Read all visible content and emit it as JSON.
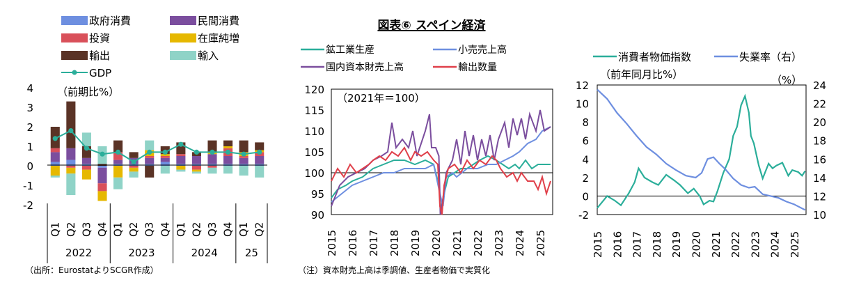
{
  "title": "図表⑥ スペイン経済",
  "source_note": "（出所：EurostatよりSCGR作成）",
  "footnote": "（注）資本財売上高は季調値、生産者物価で実質化",
  "colors": {
    "gov": "#6E8FE0",
    "priv": "#7B4E9E",
    "inv": "#D9505A",
    "inventory": "#E6B800",
    "exports": "#5A3326",
    "imports": "#8FD3C7",
    "gdp": "#2BAE9A",
    "industrial": "#2BAE9A",
    "retail": "#6E8FE0",
    "capital": "#7B4E9E",
    "exportvol": "#E0404A",
    "cpi": "#2BAE9A",
    "unemp": "#6E8FE0"
  },
  "chart_data": [
    {
      "type": "bar",
      "title": "",
      "ylabel_note": "（前期比%）",
      "ylim": [
        -2,
        4
      ],
      "yticks": [
        "4",
        "3",
        "2",
        "1",
        "0",
        "-1",
        "-2"
      ],
      "categories": [
        "Q1",
        "Q2",
        "Q3",
        "Q4",
        "Q1",
        "Q2",
        "Q3",
        "Q4",
        "Q1",
        "Q2",
        "Q3",
        "Q4",
        "Q1",
        "Q2"
      ],
      "year_labels": [
        "2022",
        "2023",
        "2024",
        "25"
      ],
      "series": [
        {
          "name": "政府消費",
          "values": [
            0.2,
            0.3,
            0.1,
            -0.1,
            0.1,
            0.1,
            0.1,
            0.2,
            0.1,
            0.1,
            0.1,
            0.1,
            0.1,
            0.1
          ]
        },
        {
          "name": "民間消費",
          "values": [
            0.5,
            0.6,
            0.3,
            -0.8,
            0.2,
            0.3,
            0.3,
            0.2,
            0.4,
            0.4,
            0.5,
            0.4,
            0.3,
            0.4
          ]
        },
        {
          "name": "投資",
          "values": [
            0.2,
            -0.1,
            -0.2,
            -0.4,
            0.4,
            -0.1,
            0.1,
            0.1,
            0.1,
            -0.2,
            -0.1,
            0.4,
            0.1,
            0.2
          ]
        },
        {
          "name": "在庫純増",
          "values": [
            -0.5,
            -0.3,
            -0.5,
            -0.5,
            -0.6,
            -0.2,
            0.3,
            0.1,
            -0.2,
            -0.1,
            0.1,
            0.1,
            0.2,
            0.1
          ]
        },
        {
          "name": "輸出",
          "values": [
            1.1,
            2.4,
            0.6,
            0.1,
            0.6,
            0.3,
            -0.6,
            0.4,
            0.6,
            0.2,
            0.6,
            0.3,
            0.6,
            0.4
          ]
        },
        {
          "name": "輸入",
          "values": [
            -0.1,
            -1.1,
            0.7,
            0.9,
            -0.6,
            -0.3,
            0.5,
            -0.4,
            -0.1,
            -0.1,
            -0.3,
            -0.4,
            -0.5,
            -0.6
          ]
        }
      ],
      "line": {
        "name": "GDP",
        "values": [
          1.4,
          1.8,
          0.9,
          0.6,
          0.7,
          0.2,
          0.7,
          0.7,
          1.1,
          0.7,
          0.7,
          0.7,
          0.6,
          0.7
        ]
      }
    },
    {
      "type": "line",
      "title": "",
      "unit_note": "（2021年＝100）",
      "ylim": [
        90,
        120
      ],
      "yticks": [
        "120",
        "115",
        "110",
        "105",
        "100",
        "95",
        "90"
      ],
      "xlim": [
        2015,
        2025.6
      ],
      "xticks": [
        "2015",
        "2016",
        "2017",
        "2018",
        "2019",
        "2020",
        "2021",
        "2022",
        "2023",
        "2024",
        "2025"
      ],
      "baseline": 100,
      "series": [
        {
          "name": "鉱工業生産",
          "values": [
            [
              2015.0,
              94
            ],
            [
              2015.3,
              96
            ],
            [
              2015.7,
              97
            ],
            [
              2016.0,
              98
            ],
            [
              2016.5,
              99
            ],
            [
              2017.0,
              101
            ],
            [
              2017.5,
              102
            ],
            [
              2018.0,
              103
            ],
            [
              2018.5,
              103
            ],
            [
              2019.0,
              102
            ],
            [
              2019.5,
              103
            ],
            [
              2019.9,
              102
            ],
            [
              2020.15,
              97
            ],
            [
              2020.25,
              91
            ],
            [
              2020.4,
              95
            ],
            [
              2020.6,
              99
            ],
            [
              2020.9,
              100
            ],
            [
              2021.2,
              101
            ],
            [
              2021.5,
              101
            ],
            [
              2021.8,
              102
            ],
            [
              2022.1,
              103
            ],
            [
              2022.5,
              104
            ],
            [
              2022.9,
              103
            ],
            [
              2023.2,
              102
            ],
            [
              2023.5,
              101
            ],
            [
              2023.8,
              102
            ],
            [
              2024.0,
              101
            ],
            [
              2024.3,
              103
            ],
            [
              2024.6,
              101
            ],
            [
              2024.9,
              102
            ],
            [
              2025.2,
              102
            ],
            [
              2025.5,
              102
            ]
          ]
        },
        {
          "name": "小売売上高",
          "values": [
            [
              2015.0,
              93
            ],
            [
              2015.5,
              95
            ],
            [
              2016.0,
              97
            ],
            [
              2016.5,
              98
            ],
            [
              2017.0,
              99
            ],
            [
              2017.5,
              100
            ],
            [
              2018.0,
              100
            ],
            [
              2018.5,
              101
            ],
            [
              2019.0,
              101
            ],
            [
              2019.5,
              101
            ],
            [
              2019.9,
              102
            ],
            [
              2020.2,
              95
            ],
            [
              2020.35,
              92
            ],
            [
              2020.5,
              99
            ],
            [
              2020.8,
              100
            ],
            [
              2021.0,
              99
            ],
            [
              2021.5,
              101
            ],
            [
              2022.0,
              101
            ],
            [
              2022.5,
              102
            ],
            [
              2022.9,
              102
            ],
            [
              2023.3,
              103
            ],
            [
              2023.7,
              104
            ],
            [
              2024.0,
              105
            ],
            [
              2024.4,
              107
            ],
            [
              2024.8,
              108
            ],
            [
              2025.1,
              110
            ],
            [
              2025.5,
              111
            ]
          ]
        },
        {
          "name": "国内資本財売上高",
          "values": [
            [
              2015.0,
              92
            ],
            [
              2015.4,
              97
            ],
            [
              2015.8,
              99
            ],
            [
              2016.2,
              100
            ],
            [
              2016.6,
              101
            ],
            [
              2017.0,
              103
            ],
            [
              2017.4,
              104
            ],
            [
              2017.7,
              105
            ],
            [
              2017.9,
              112
            ],
            [
              2018.1,
              106
            ],
            [
              2018.4,
              108
            ],
            [
              2018.7,
              106
            ],
            [
              2018.9,
              110
            ],
            [
              2019.1,
              104
            ],
            [
              2019.3,
              107
            ],
            [
              2019.5,
              110
            ],
            [
              2019.7,
              114
            ],
            [
              2019.8,
              106
            ],
            [
              2020.0,
              106
            ],
            [
              2020.15,
              104
            ],
            [
              2020.22,
              90
            ],
            [
              2020.35,
              94
            ],
            [
              2020.5,
              100
            ],
            [
              2020.8,
              103
            ],
            [
              2021.0,
              108
            ],
            [
              2021.2,
              102
            ],
            [
              2021.4,
              110
            ],
            [
              2021.6,
              104
            ],
            [
              2021.8,
              109
            ],
            [
              2022.0,
              103
            ],
            [
              2022.2,
              108
            ],
            [
              2022.4,
              104
            ],
            [
              2022.6,
              109
            ],
            [
              2022.8,
              103
            ],
            [
              2023.0,
              108
            ],
            [
              2023.3,
              112
            ],
            [
              2023.5,
              106
            ],
            [
              2023.7,
              113
            ],
            [
              2023.9,
              109
            ],
            [
              2024.1,
              113
            ],
            [
              2024.3,
              108
            ],
            [
              2024.5,
              114
            ],
            [
              2024.8,
              110
            ],
            [
              2025.0,
              115
            ],
            [
              2025.2,
              110
            ],
            [
              2025.5,
              111
            ]
          ]
        },
        {
          "name": "輸出数量",
          "values": [
            [
              2015.0,
              98
            ],
            [
              2015.3,
              101
            ],
            [
              2015.6,
              99
            ],
            [
              2015.9,
              102
            ],
            [
              2016.2,
              100
            ],
            [
              2016.5,
              101
            ],
            [
              2016.8,
              102
            ],
            [
              2017.0,
              103
            ],
            [
              2017.3,
              104
            ],
            [
              2017.6,
              103
            ],
            [
              2017.9,
              105
            ],
            [
              2018.2,
              104
            ],
            [
              2018.5,
              106
            ],
            [
              2018.8,
              103
            ],
            [
              2019.0,
              105
            ],
            [
              2019.3,
              104
            ],
            [
              2019.6,
              105
            ],
            [
              2019.9,
              103
            ],
            [
              2020.1,
              102
            ],
            [
              2020.2,
              92
            ],
            [
              2020.3,
              90
            ],
            [
              2020.4,
              97
            ],
            [
              2020.6,
              101
            ],
            [
              2020.9,
              102
            ],
            [
              2021.2,
              100
            ],
            [
              2021.5,
              103
            ],
            [
              2021.8,
              101
            ],
            [
              2022.1,
              103
            ],
            [
              2022.4,
              102
            ],
            [
              2022.7,
              104
            ],
            [
              2022.9,
              103
            ],
            [
              2023.1,
              101
            ],
            [
              2023.4,
              99
            ],
            [
              2023.7,
              100
            ],
            [
              2023.9,
              98
            ],
            [
              2024.1,
              100
            ],
            [
              2024.4,
              98
            ],
            [
              2024.7,
              98
            ],
            [
              2024.9,
              96
            ],
            [
              2025.1,
              99
            ],
            [
              2025.3,
              95
            ],
            [
              2025.5,
              98
            ]
          ]
        }
      ]
    },
    {
      "type": "line",
      "title": "",
      "unit_note_left": "（前年同月比%）",
      "unit_note_right": "（%）",
      "left_ylim": [
        -2,
        12
      ],
      "left_yticks": [
        "12",
        "10",
        "8",
        "6",
        "4",
        "2",
        "0",
        "-2"
      ],
      "right_ylim": [
        10,
        24
      ],
      "right_yticks": [
        "24",
        "22",
        "20",
        "18",
        "16",
        "14",
        "12",
        "10"
      ],
      "xlim": [
        2015,
        2025.6
      ],
      "xticks": [
        "2015",
        "2016",
        "2017",
        "2018",
        "2019",
        "2020",
        "2021",
        "2022",
        "2023",
        "2024",
        "2025"
      ],
      "series": [
        {
          "name": "消費者物価指数",
          "axis": "left",
          "values": [
            [
              2015.0,
              -1.3
            ],
            [
              2015.5,
              0.0
            ],
            [
              2015.9,
              -0.5
            ],
            [
              2016.2,
              -1.0
            ],
            [
              2016.6,
              0.3
            ],
            [
              2016.9,
              1.5
            ],
            [
              2017.1,
              3.0
            ],
            [
              2017.4,
              2.0
            ],
            [
              2017.8,
              1.5
            ],
            [
              2018.1,
              1.2
            ],
            [
              2018.5,
              2.3
            ],
            [
              2018.9,
              1.7
            ],
            [
              2019.2,
              1.2
            ],
            [
              2019.6,
              0.3
            ],
            [
              2019.9,
              0.8
            ],
            [
              2020.2,
              0.0
            ],
            [
              2020.4,
              -0.9
            ],
            [
              2020.7,
              -0.5
            ],
            [
              2020.9,
              -0.6
            ],
            [
              2021.1,
              0.5
            ],
            [
              2021.4,
              2.5
            ],
            [
              2021.7,
              4.0
            ],
            [
              2021.9,
              6.5
            ],
            [
              2022.1,
              7.5
            ],
            [
              2022.3,
              9.8
            ],
            [
              2022.5,
              10.8
            ],
            [
              2022.7,
              9.0
            ],
            [
              2022.8,
              6.5
            ],
            [
              2022.95,
              5.7
            ],
            [
              2023.2,
              3.3
            ],
            [
              2023.4,
              1.9
            ],
            [
              2023.7,
              3.5
            ],
            [
              2023.9,
              3.0
            ],
            [
              2024.1,
              3.3
            ],
            [
              2024.4,
              3.6
            ],
            [
              2024.7,
              2.2
            ],
            [
              2024.9,
              2.8
            ],
            [
              2025.2,
              2.6
            ],
            [
              2025.4,
              2.2
            ],
            [
              2025.55,
              2.7
            ]
          ]
        },
        {
          "name": "失業率（右）",
          "axis": "right",
          "values": [
            [
              2015.0,
              23.5
            ],
            [
              2015.5,
              22.5
            ],
            [
              2016.0,
              21.0
            ],
            [
              2016.5,
              19.8
            ],
            [
              2017.0,
              18.5
            ],
            [
              2017.5,
              17.3
            ],
            [
              2018.0,
              16.5
            ],
            [
              2018.5,
              15.5
            ],
            [
              2019.0,
              14.8
            ],
            [
              2019.5,
              14.2
            ],
            [
              2020.0,
              14.0
            ],
            [
              2020.3,
              14.5
            ],
            [
              2020.6,
              16.0
            ],
            [
              2020.9,
              16.2
            ],
            [
              2021.2,
              15.5
            ],
            [
              2021.5,
              14.9
            ],
            [
              2021.9,
              13.9
            ],
            [
              2022.3,
              13.2
            ],
            [
              2022.7,
              12.9
            ],
            [
              2023.0,
              13.0
            ],
            [
              2023.4,
              12.2
            ],
            [
              2023.8,
              12.0
            ],
            [
              2024.2,
              11.8
            ],
            [
              2024.6,
              11.4
            ],
            [
              2025.0,
              11.1
            ],
            [
              2025.55,
              10.5
            ]
          ]
        }
      ]
    }
  ]
}
